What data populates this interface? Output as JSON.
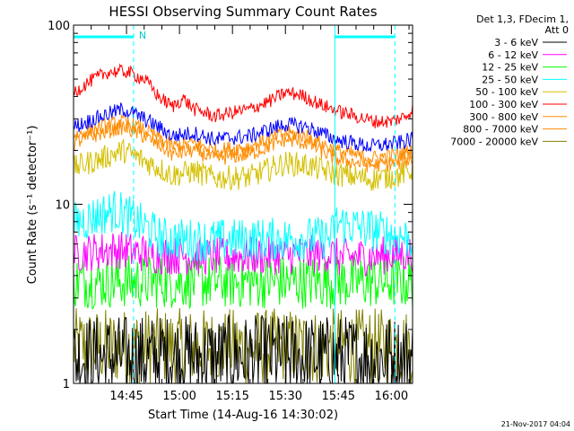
{
  "chart_data": {
    "type": "line",
    "title": "HESSI Observing Summary Count Rates",
    "xlabel": "Start Time (14-Aug-16 14:30:02)",
    "ylabel": "Count Rate (s⁻¹ detector⁻¹)",
    "ylog": true,
    "ylim": [
      1,
      100
    ],
    "xlim_minutes": [
      0,
      96
    ],
    "x_ticks": [
      {
        "label": "14:45",
        "minute": 15
      },
      {
        "label": "15:00",
        "minute": 30
      },
      {
        "label": "15:15",
        "minute": 45
      },
      {
        "label": "15:30",
        "minute": 60
      },
      {
        "label": "15:45",
        "minute": 75
      },
      {
        "label": "16:00",
        "minute": 90
      }
    ],
    "y_ticks": [
      {
        "label": "1",
        "value": 1
      },
      {
        "label": "10",
        "value": 10
      },
      {
        "label": "100",
        "value": 100
      }
    ],
    "legend_header": [
      "Det 1,3, FDecim 1,",
      "Att 0"
    ],
    "annotation_n": "N",
    "series": [
      {
        "name": "3 - 6 keV",
        "color": "#000000",
        "minute": [
          0,
          96
        ],
        "value": [
          1.4,
          1.4
        ]
      },
      {
        "name": "6 - 12 keV",
        "color": "#ff00ff",
        "minute": [
          0,
          12,
          24,
          40,
          60,
          73,
          75,
          96
        ],
        "value": [
          5.3,
          5.6,
          5.2,
          5.1,
          5.2,
          5.3,
          5.0,
          5.3
        ]
      },
      {
        "name": "12 - 25 keV",
        "color": "#00ff00",
        "minute": [
          0,
          96
        ],
        "value": [
          3.7,
          3.7
        ]
      },
      {
        "name": "25 - 50 keV",
        "color": "#00ffff",
        "minute": [
          0,
          12,
          25,
          40,
          73,
          74,
          96
        ],
        "value": [
          7.8,
          9.3,
          6.4,
          6.3,
          6.5,
          7.9,
          6.4
        ]
      },
      {
        "name": "50 - 100 keV",
        "color": "#d4c000",
        "minute": [
          0,
          8,
          14,
          20,
          28,
          34,
          40,
          50,
          60,
          66,
          74,
          84,
          92,
          96
        ],
        "value": [
          16.0,
          18.0,
          20.0,
          17.5,
          14.5,
          15.3,
          14.0,
          14.2,
          17.0,
          16.5,
          14.8,
          13.8,
          14.5,
          15.6
        ]
      },
      {
        "name": "100 - 300 keV",
        "color": "#ff0000",
        "minute": [
          0,
          5,
          10,
          15,
          20,
          24,
          28,
          31,
          34,
          40,
          50,
          56,
          60,
          64,
          70,
          75,
          80,
          85,
          90,
          94,
          96
        ],
        "value": [
          42,
          49,
          55,
          55,
          50,
          40,
          35,
          39,
          34,
          31,
          34,
          38,
          42,
          41,
          36,
          33,
          31,
          29,
          29,
          31,
          34
        ]
      },
      {
        "name": "300 - 800 keV",
        "color": "#ff8c00",
        "minute": [
          0,
          8,
          14,
          20,
          28,
          34,
          40,
          50,
          60,
          66,
          74,
          84,
          92,
          96
        ],
        "value": [
          24,
          27,
          29,
          26,
          21,
          22,
          20,
          21,
          25,
          24,
          20,
          18,
          19,
          20
        ]
      },
      {
        "name": "800 - 7000 keV",
        "color": "#ff8c00",
        "minute": [
          0,
          8,
          14,
          20,
          28,
          34,
          40,
          50,
          60,
          66,
          74,
          84,
          92,
          96
        ],
        "value": [
          22,
          25,
          27,
          24,
          19,
          20,
          18,
          19,
          23,
          22,
          18,
          16.5,
          17,
          18
        ]
      },
      {
        "name": "7000 - 20000 keV",
        "color": "#808000",
        "minute": [
          0,
          96
        ],
        "value": [
          1.6,
          1.6
        ]
      }
    ],
    "blue_series": {
      "color": "#0000ff",
      "minute": [
        0,
        8,
        14,
        20,
        28,
        34,
        40,
        50,
        60,
        66,
        74,
        84,
        92,
        96
      ],
      "value": [
        27,
        31,
        34,
        30,
        24,
        25,
        23,
        24,
        28,
        27,
        23,
        21,
        22,
        23
      ]
    },
    "intervals": [
      {
        "start_minute": 0,
        "end_minute": 17,
        "color": "#00ffff"
      },
      {
        "start_minute": 74,
        "end_minute": 91,
        "color": "#00ffff"
      }
    ],
    "vertical_markers_minute": [
      17,
      74,
      91
    ]
  },
  "footer": {
    "stamp": "21-Nov-2017 04:04"
  }
}
